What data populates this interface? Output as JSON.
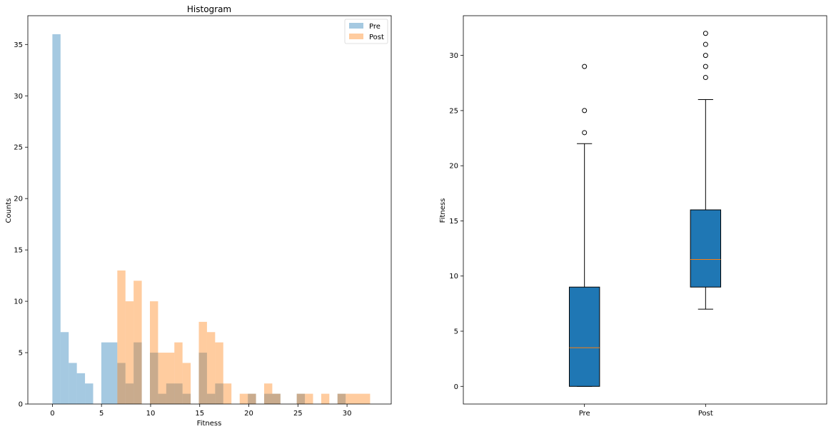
{
  "chart_data": [
    {
      "type": "histogram",
      "title": "Histogram",
      "xlabel": "Fitness",
      "ylabel": "Counts",
      "xlim": [
        -2.5,
        34.5
      ],
      "ylim": [
        0,
        37.8
      ],
      "xticks": [
        0,
        5,
        10,
        15,
        20,
        25,
        30
      ],
      "yticks": [
        0,
        5,
        10,
        15,
        20,
        25,
        30,
        35
      ],
      "grid": false,
      "legend_position": "top-right",
      "series": [
        {
          "name": "Pre",
          "color": "#1f77b4",
          "alpha": 0.4,
          "bins": [
            {
              "x0": 0.0,
              "x1": 0.83,
              "count": 36
            },
            {
              "x0": 0.83,
              "x1": 1.66,
              "count": 7
            },
            {
              "x0": 1.66,
              "x1": 2.49,
              "count": 4
            },
            {
              "x0": 2.49,
              "x1": 3.32,
              "count": 3
            },
            {
              "x0": 3.32,
              "x1": 4.15,
              "count": 2
            },
            {
              "x0": 4.15,
              "x1": 4.98,
              "count": 0
            },
            {
              "x0": 4.98,
              "x1": 6.61,
              "count": 6
            },
            {
              "x0": 6.61,
              "x1": 7.44,
              "count": 4
            },
            {
              "x0": 7.44,
              "x1": 8.27,
              "count": 2
            },
            {
              "x0": 8.27,
              "x1": 9.1,
              "count": 6
            },
            {
              "x0": 9.1,
              "x1": 9.93,
              "count": 0
            },
            {
              "x0": 9.93,
              "x1": 10.76,
              "count": 5
            },
            {
              "x0": 10.76,
              "x1": 11.59,
              "count": 1
            },
            {
              "x0": 11.59,
              "x1": 13.25,
              "count": 2
            },
            {
              "x0": 13.25,
              "x1": 14.08,
              "count": 1
            },
            {
              "x0": 14.08,
              "x1": 14.91,
              "count": 0
            },
            {
              "x0": 14.91,
              "x1": 15.74,
              "count": 5
            },
            {
              "x0": 15.74,
              "x1": 16.57,
              "count": 1
            },
            {
              "x0": 16.57,
              "x1": 17.4,
              "count": 2
            },
            {
              "x0": 19.9,
              "x1": 20.73,
              "count": 1
            },
            {
              "x0": 21.56,
              "x1": 23.22,
              "count": 1
            },
            {
              "x0": 24.88,
              "x1": 25.71,
              "count": 1
            },
            {
              "x0": 29.03,
              "x1": 29.86,
              "count": 1
            }
          ]
        },
        {
          "name": "Post",
          "color": "#ff7f0e",
          "alpha": 0.4,
          "bins": [
            {
              "x0": 6.61,
              "x1": 7.44,
              "count": 13
            },
            {
              "x0": 7.44,
              "x1": 8.27,
              "count": 10
            },
            {
              "x0": 8.27,
              "x1": 9.1,
              "count": 12
            },
            {
              "x0": 9.93,
              "x1": 10.76,
              "count": 10
            },
            {
              "x0": 10.76,
              "x1": 12.42,
              "count": 5
            },
            {
              "x0": 12.42,
              "x1": 13.25,
              "count": 6
            },
            {
              "x0": 13.25,
              "x1": 14.08,
              "count": 4
            },
            {
              "x0": 14.91,
              "x1": 15.74,
              "count": 8
            },
            {
              "x0": 15.74,
              "x1": 16.57,
              "count": 7
            },
            {
              "x0": 16.57,
              "x1": 17.4,
              "count": 6
            },
            {
              "x0": 17.4,
              "x1": 18.23,
              "count": 2
            },
            {
              "x0": 19.07,
              "x1": 19.9,
              "count": 1
            },
            {
              "x0": 19.9,
              "x1": 20.73,
              "count": 1
            },
            {
              "x0": 21.56,
              "x1": 22.39,
              "count": 2
            },
            {
              "x0": 22.39,
              "x1": 23.22,
              "count": 1
            },
            {
              "x0": 24.88,
              "x1": 25.71,
              "count": 1
            },
            {
              "x0": 25.71,
              "x1": 26.54,
              "count": 1
            },
            {
              "x0": 27.37,
              "x1": 28.2,
              "count": 1
            },
            {
              "x0": 29.03,
              "x1": 29.86,
              "count": 1
            },
            {
              "x0": 29.86,
              "x1": 32.35,
              "count": 1
            }
          ]
        }
      ]
    },
    {
      "type": "boxplot",
      "ylabel": "Fitness",
      "categories": [
        "Pre",
        "Post"
      ],
      "ylim": [
        -1.6,
        33.6
      ],
      "yticks": [
        0,
        5,
        10,
        15,
        20,
        25,
        30
      ],
      "grid": false,
      "box_color": "#1f77b4",
      "median_color": "#ff7f0e",
      "boxes": [
        {
          "label": "Pre",
          "whislo": 0,
          "q1": 0,
          "med": 3.5,
          "q3": 9,
          "whishi": 22,
          "fliers": [
            23,
            25,
            29
          ]
        },
        {
          "label": "Post",
          "whislo": 7,
          "q1": 9,
          "med": 11.5,
          "q3": 16,
          "whishi": 26,
          "fliers": [
            28,
            29,
            30,
            31,
            32
          ]
        }
      ]
    }
  ]
}
